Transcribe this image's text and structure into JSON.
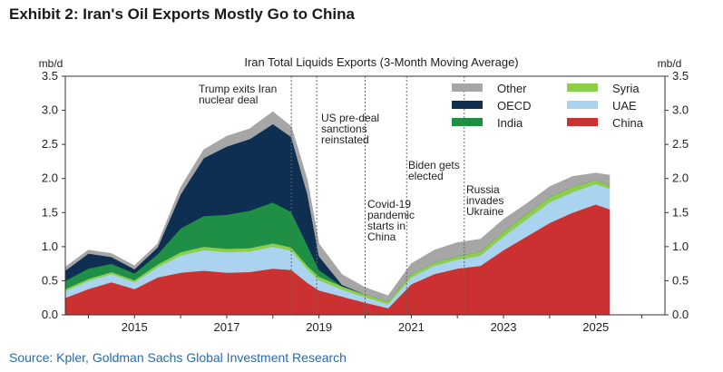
{
  "exhibit_title": "Exhibit 2: Iran's Oil Exports Mostly Go to China",
  "source": "Source: Kpler, Goldman Sachs Global Investment Research",
  "chart_data": {
    "type": "area",
    "title": "Iran Total Liquids Exports (3-Month Moving Average)",
    "unit_left": "mb/d",
    "unit_right": "mb/d",
    "ylim": [
      0,
      3.5
    ],
    "yticks": [
      "0.0",
      "0.5",
      "1.0",
      "1.5",
      "2.0",
      "2.5",
      "3.0",
      "3.5"
    ],
    "xlim": [
      2013.5,
      2026.5
    ],
    "xticks": [
      "2015",
      "2017",
      "2019",
      "2021",
      "2023",
      "2025"
    ],
    "legend_position": "top-right",
    "legend": [
      {
        "name": "Other",
        "color": "#a6a6a6"
      },
      {
        "name": "Syria",
        "color": "#8ccf4d"
      },
      {
        "name": "OECD",
        "color": "#0e2e52"
      },
      {
        "name": "UAE",
        "color": "#a9d3ee"
      },
      {
        "name": "India",
        "color": "#1f8f45"
      },
      {
        "name": "China",
        "color": "#cc3131"
      }
    ],
    "x": [
      2013.5,
      2014.0,
      2014.5,
      2015.0,
      2015.5,
      2016.0,
      2016.5,
      2017.0,
      2017.5,
      2018.0,
      2018.4,
      2018.75,
      2019.0,
      2019.5,
      2020.0,
      2020.5,
      2021.0,
      2021.5,
      2022.0,
      2022.5,
      2023.0,
      2023.5,
      2024.0,
      2024.5,
      2025.0,
      2025.3
    ],
    "series": [
      {
        "name": "China",
        "color": "#cc3131",
        "values": [
          0.25,
          0.38,
          0.48,
          0.38,
          0.55,
          0.62,
          0.65,
          0.62,
          0.63,
          0.68,
          0.66,
          0.47,
          0.36,
          0.27,
          0.18,
          0.1,
          0.45,
          0.6,
          0.68,
          0.72,
          0.95,
          1.15,
          1.35,
          1.5,
          1.62,
          1.55
        ]
      },
      {
        "name": "UAE",
        "color": "#a9d3ee",
        "values": [
          0.1,
          0.12,
          0.12,
          0.1,
          0.15,
          0.25,
          0.3,
          0.3,
          0.3,
          0.32,
          0.28,
          0.2,
          0.15,
          0.1,
          0.08,
          0.06,
          0.1,
          0.12,
          0.13,
          0.15,
          0.2,
          0.25,
          0.3,
          0.3,
          0.3,
          0.3
        ]
      },
      {
        "name": "Syria",
        "color": "#8ccf4d",
        "values": [
          0.03,
          0.03,
          0.03,
          0.03,
          0.04,
          0.05,
          0.05,
          0.05,
          0.05,
          0.05,
          0.05,
          0.05,
          0.05,
          0.05,
          0.04,
          0.04,
          0.05,
          0.05,
          0.05,
          0.06,
          0.07,
          0.08,
          0.08,
          0.08,
          0.06,
          0.05
        ]
      },
      {
        "name": "India",
        "color": "#1f8f45",
        "values": [
          0.12,
          0.15,
          0.12,
          0.1,
          0.15,
          0.35,
          0.45,
          0.5,
          0.55,
          0.6,
          0.52,
          0.3,
          0.1,
          0,
          0,
          0,
          0,
          0,
          0,
          0,
          0,
          0,
          0,
          0,
          0,
          0
        ]
      },
      {
        "name": "OECD",
        "color": "#0e2e52",
        "values": [
          0.15,
          0.22,
          0.1,
          0.06,
          0.1,
          0.5,
          0.85,
          1.0,
          1.05,
          1.15,
          1.1,
          0.75,
          0.2,
          0.02,
          0,
          0,
          0,
          0,
          0,
          0,
          0,
          0,
          0,
          0,
          0,
          0
        ]
      },
      {
        "name": "Other",
        "color": "#a6a6a6",
        "values": [
          0.05,
          0.05,
          0.05,
          0.05,
          0.05,
          0.1,
          0.12,
          0.15,
          0.15,
          0.18,
          0.15,
          0.2,
          0.18,
          0.15,
          0.1,
          0.08,
          0.15,
          0.18,
          0.2,
          0.18,
          0.18,
          0.15,
          0.15,
          0.15,
          0.1,
          0.15
        ]
      }
    ],
    "events": [
      {
        "x": 2018.4,
        "label": [
          "Trump exits Iran",
          "nuclear deal"
        ]
      },
      {
        "x": 2018.95,
        "label": [
          "US pre-deal",
          "sanctions",
          "reinstated"
        ]
      },
      {
        "x": 2020.0,
        "label": [
          "Covid-19",
          "pandemic",
          "starts in",
          "China"
        ]
      },
      {
        "x": 2020.9,
        "label": [
          "Biden gets",
          "elected"
        ]
      },
      {
        "x": 2022.15,
        "label": [
          "Russia",
          "invades",
          "Ukraine"
        ]
      }
    ]
  }
}
